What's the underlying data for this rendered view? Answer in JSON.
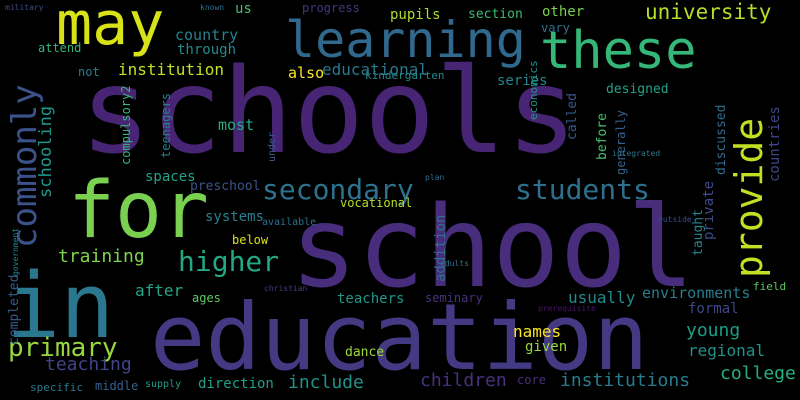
{
  "words": [
    {
      "text": "schools",
      "color": "#482574"
    },
    {
      "text": "school",
      "color": "#472d7b"
    },
    {
      "text": "education",
      "color": "#443a83"
    },
    {
      "text": "for",
      "color": "#7ad151"
    },
    {
      "text": "in",
      "color": "#2a788e"
    },
    {
      "text": "may",
      "color": "#d8e219"
    },
    {
      "text": "learning",
      "color": "#31688e"
    },
    {
      "text": "these",
      "color": "#35b779"
    },
    {
      "text": "provide",
      "color": "#c2df23"
    },
    {
      "text": "commonly",
      "color": "#3b528b"
    },
    {
      "text": "secondary",
      "color": "#2c728e"
    },
    {
      "text": "students",
      "color": "#2d708e"
    },
    {
      "text": "higher",
      "color": "#22a884"
    },
    {
      "text": "primary",
      "color": "#98d83e"
    },
    {
      "text": "university",
      "color": "#b5de2b"
    },
    {
      "text": "educational",
      "color": "#2a768e"
    },
    {
      "text": "institution",
      "color": "#c5e021"
    },
    {
      "text": "schooling",
      "color": "#1f988b"
    },
    {
      "text": "country",
      "color": "#26828e"
    },
    {
      "text": "through",
      "color": "#238a8d"
    },
    {
      "text": "also",
      "color": "#fde725"
    },
    {
      "text": "most",
      "color": "#25ab82"
    },
    {
      "text": "private",
      "color": "#3e4a89"
    },
    {
      "text": "countries",
      "color": "#404688"
    },
    {
      "text": "training",
      "color": "#7fd34e"
    },
    {
      "text": "teaching",
      "color": "#414487"
    },
    {
      "text": "young",
      "color": "#1e9c89"
    },
    {
      "text": "formal",
      "color": "#3f4788"
    },
    {
      "text": "college",
      "color": "#28ae80"
    },
    {
      "text": "regional",
      "color": "#21918c"
    },
    {
      "text": "children",
      "color": "#46337f"
    },
    {
      "text": "include",
      "color": "#20928c"
    },
    {
      "text": "institutions",
      "color": "#287c8e"
    },
    {
      "text": "usually",
      "color": "#238a8d"
    },
    {
      "text": "environments",
      "color": "#287d8e"
    },
    {
      "text": "teachers",
      "color": "#1f968b"
    },
    {
      "text": "after",
      "color": "#22a785"
    },
    {
      "text": "completed",
      "color": "#375b8d"
    },
    {
      "text": "systems",
      "color": "#26818e"
    },
    {
      "text": "below",
      "color": "#dde318"
    },
    {
      "text": "direction",
      "color": "#1fa187"
    },
    {
      "text": "names",
      "color": "#fde725"
    },
    {
      "text": "given",
      "color": "#95d840"
    },
    {
      "text": "dance",
      "color": "#9fda3a"
    },
    {
      "text": "spaces",
      "color": "#20a486"
    },
    {
      "text": "preschool",
      "color": "#3a548c"
    },
    {
      "text": "vocational",
      "color": "#b8de29"
    },
    {
      "text": "attend",
      "color": "#32b67a"
    },
    {
      "text": "not",
      "color": "#277f8e"
    },
    {
      "text": "us",
      "color": "#44bf70"
    },
    {
      "text": "progress",
      "color": "#453581"
    },
    {
      "text": "pupils",
      "color": "#addc30"
    },
    {
      "text": "section",
      "color": "#3dbc74"
    },
    {
      "text": "other",
      "color": "#75d054"
    },
    {
      "text": "vary",
      "color": "#2d718e"
    },
    {
      "text": "series",
      "color": "#24868e"
    },
    {
      "text": "designed",
      "color": "#20a386"
    },
    {
      "text": "called",
      "color": "#38598c"
    },
    {
      "text": "before",
      "color": "#4ac16d"
    },
    {
      "text": "generally",
      "color": "#34618d"
    },
    {
      "text": "discussed",
      "color": "#2f6c8e"
    },
    {
      "text": "taught",
      "color": "#25848e"
    },
    {
      "text": "addition",
      "color": "#2d718e"
    },
    {
      "text": "compulsory2",
      "color": "#35b779"
    },
    {
      "text": "teenagers",
      "color": "#26818e"
    },
    {
      "text": "seminary",
      "color": "#46327e"
    },
    {
      "text": "ages",
      "color": "#5ec962"
    },
    {
      "text": "core",
      "color": "#472f7d"
    },
    {
      "text": "middle",
      "color": "#35608d"
    },
    {
      "text": "specific",
      "color": "#2a788e"
    },
    {
      "text": "supply",
      "color": "#1f9e89"
    },
    {
      "text": "field",
      "color": "#5cc863"
    },
    {
      "text": "kindergarten",
      "color": "#23898e"
    },
    {
      "text": "economics",
      "color": "#21918c"
    },
    {
      "text": "available",
      "color": "#2c728e"
    },
    {
      "text": "under",
      "color": "#355f8d"
    },
    {
      "text": "military",
      "color": "#3e4989"
    },
    {
      "text": "known",
      "color": "#2e6f8e"
    },
    {
      "text": "government",
      "color": "#24878e"
    },
    {
      "text": "christian",
      "color": "#443b84"
    },
    {
      "text": "adults",
      "color": "#2c738e"
    },
    {
      "text": "plan",
      "color": "#2f6b8e"
    },
    {
      "text": "outside",
      "color": "#3d4d8a"
    },
    {
      "text": "prerequisite",
      "color": "#471365"
    },
    {
      "text": "integrated",
      "color": "#2a788e"
    }
  ]
}
